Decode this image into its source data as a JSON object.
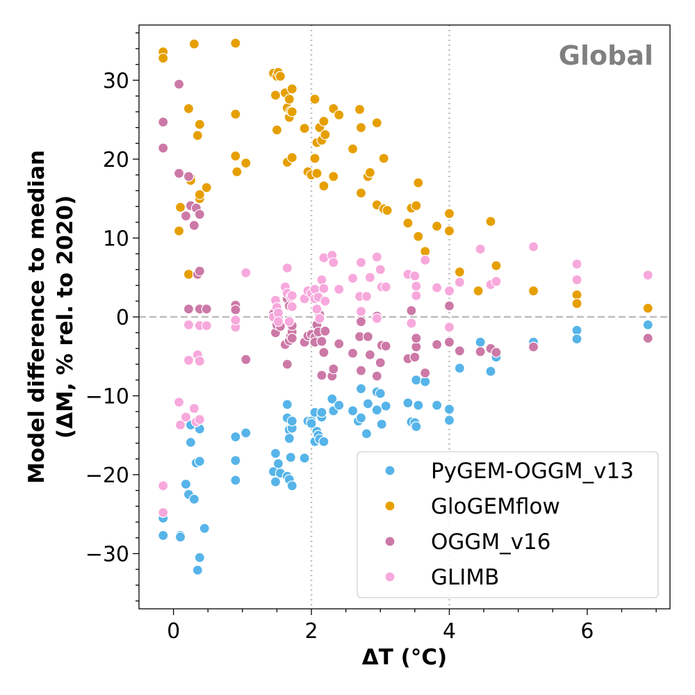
{
  "chart_data": {
    "type": "scatter",
    "title": "",
    "annotation": "Global",
    "xlabel": "ΔT (°C)",
    "ylabel_line1": "Model difference to median",
    "ylabel_line2": "(ΔM, % rel. to 2020)",
    "xlim": [
      -0.5,
      7.2
    ],
    "ylim": [
      -37,
      37
    ],
    "x_ticks": [
      0,
      2,
      4,
      6
    ],
    "y_ticks": [
      -30,
      -20,
      -10,
      0,
      10,
      20,
      30
    ],
    "x_tick_labels": [
      "0",
      "2",
      "4",
      "6"
    ],
    "y_tick_labels": [
      "−30",
      "−20",
      "−10",
      "0",
      "10",
      "20",
      "30"
    ],
    "reference_lines": {
      "vertical": [
        2,
        4
      ],
      "horizontal": [
        0
      ]
    },
    "legend_position": "bottom-right",
    "series": [
      {
        "name": "PyGEM-OGGM_v13",
        "color": "#56b4e9",
        "points": [
          [
            -0.15,
            -25.5
          ],
          [
            -0.15,
            -27.7
          ],
          [
            0.1,
            -27.7
          ],
          [
            0.1,
            -27.9
          ],
          [
            0.18,
            -21.2
          ],
          [
            0.22,
            -22.5
          ],
          [
            0.25,
            -13.7
          ],
          [
            0.25,
            -15.9
          ],
          [
            0.3,
            -23.1
          ],
          [
            0.33,
            -18.5
          ],
          [
            0.35,
            -32.1
          ],
          [
            0.38,
            -30.5
          ],
          [
            0.38,
            -18.3
          ],
          [
            0.38,
            -14.2
          ],
          [
            0.45,
            -26.8
          ],
          [
            0.9,
            -15.3
          ],
          [
            0.9,
            -18.2
          ],
          [
            0.9,
            -20.7
          ],
          [
            0.9,
            -15.2
          ],
          [
            1.05,
            -14.7
          ],
          [
            1.45,
            -19.6
          ],
          [
            1.48,
            -17.3
          ],
          [
            1.48,
            -20.9
          ],
          [
            1.52,
            -18.6
          ],
          [
            1.55,
            -19.8
          ],
          [
            1.65,
            -12.8
          ],
          [
            1.65,
            -11.1
          ],
          [
            1.65,
            -20.2
          ],
          [
            1.68,
            -20.6
          ],
          [
            1.68,
            -14.3
          ],
          [
            1.68,
            -15.4
          ],
          [
            1.7,
            -17.8
          ],
          [
            1.72,
            -14.1
          ],
          [
            1.72,
            -13.2
          ],
          [
            1.72,
            -21.4
          ],
          [
            1.9,
            -17.9
          ],
          [
            1.95,
            -13.2
          ],
          [
            2.0,
            -13.2
          ],
          [
            2.0,
            -13.5
          ],
          [
            2.05,
            -15.8
          ],
          [
            2.05,
            -12.1
          ],
          [
            2.08,
            -14.5
          ],
          [
            2.1,
            -15.0
          ],
          [
            2.12,
            -15.5
          ],
          [
            2.15,
            -12.7
          ],
          [
            2.15,
            -12.1
          ],
          [
            2.18,
            -15.8
          ],
          [
            2.3,
            -10.4
          ],
          [
            2.32,
            -11.9
          ],
          [
            2.4,
            -11.2
          ],
          [
            2.6,
            -11.9
          ],
          [
            2.68,
            -13.2
          ],
          [
            2.72,
            -12.8
          ],
          [
            2.72,
            -9.1
          ],
          [
            2.8,
            -14.8
          ],
          [
            2.82,
            -11.0
          ],
          [
            2.95,
            -9.5
          ],
          [
            2.95,
            -11.8
          ],
          [
            3.0,
            -9.7
          ],
          [
            3.02,
            -13.6
          ],
          [
            3.08,
            -11.3
          ],
          [
            3.4,
            -10.9
          ],
          [
            3.45,
            -13.3
          ],
          [
            3.5,
            -13.4
          ],
          [
            3.52,
            -13.9
          ],
          [
            3.52,
            -8.0
          ],
          [
            3.55,
            -11.2
          ],
          [
            3.65,
            -8.2
          ],
          [
            3.82,
            -11.2
          ],
          [
            4.0,
            -11.7
          ],
          [
            4.0,
            -13.1
          ],
          [
            4.15,
            -6.5
          ],
          [
            4.45,
            -3.2
          ],
          [
            4.6,
            -6.9
          ],
          [
            4.68,
            -5.1
          ],
          [
            5.22,
            -3.2
          ],
          [
            5.85,
            -1.7
          ],
          [
            5.85,
            -2.8
          ],
          [
            6.88,
            -1.0
          ]
        ]
      },
      {
        "name": "GloGEMflow",
        "color": "#e69f00",
        "points": [
          [
            -0.15,
            33.6
          ],
          [
            -0.15,
            32.8
          ],
          [
            0.08,
            10.9
          ],
          [
            0.1,
            13.9
          ],
          [
            0.22,
            26.4
          ],
          [
            0.22,
            5.4
          ],
          [
            0.25,
            17.6
          ],
          [
            0.25,
            17.3
          ],
          [
            0.3,
            34.6
          ],
          [
            0.35,
            23.0
          ],
          [
            0.38,
            15.0
          ],
          [
            0.38,
            24.4
          ],
          [
            0.38,
            15.5
          ],
          [
            0.48,
            16.4
          ],
          [
            0.9,
            34.7
          ],
          [
            0.9,
            20.4
          ],
          [
            0.9,
            25.7
          ],
          [
            0.92,
            18.4
          ],
          [
            1.05,
            19.5
          ],
          [
            1.45,
            30.9
          ],
          [
            1.48,
            28.1
          ],
          [
            1.5,
            30.5
          ],
          [
            1.5,
            23.7
          ],
          [
            1.52,
            31.0
          ],
          [
            1.55,
            30.5
          ],
          [
            1.62,
            28.4
          ],
          [
            1.65,
            26.5
          ],
          [
            1.65,
            19.6
          ],
          [
            1.68,
            25.3
          ],
          [
            1.68,
            27.6
          ],
          [
            1.7,
            26.1
          ],
          [
            1.72,
            26.0
          ],
          [
            1.72,
            28.9
          ],
          [
            1.72,
            20.2
          ],
          [
            1.9,
            23.9
          ],
          [
            1.95,
            18.4
          ],
          [
            2.0,
            18.0
          ],
          [
            2.05,
            27.6
          ],
          [
            2.05,
            20.1
          ],
          [
            2.08,
            22.1
          ],
          [
            2.08,
            18.2
          ],
          [
            2.12,
            24.0
          ],
          [
            2.15,
            22.4
          ],
          [
            2.18,
            16.6
          ],
          [
            2.18,
            24.8
          ],
          [
            2.2,
            23.1
          ],
          [
            2.32,
            26.4
          ],
          [
            2.32,
            17.8
          ],
          [
            2.4,
            25.6
          ],
          [
            2.6,
            21.3
          ],
          [
            2.7,
            26.3
          ],
          [
            2.72,
            24.0
          ],
          [
            2.72,
            15.7
          ],
          [
            2.82,
            17.8
          ],
          [
            2.85,
            18.3
          ],
          [
            2.95,
            24.6
          ],
          [
            2.95,
            14.2
          ],
          [
            3.05,
            20.1
          ],
          [
            3.05,
            13.7
          ],
          [
            3.1,
            13.5
          ],
          [
            3.4,
            11.9
          ],
          [
            3.45,
            13.8
          ],
          [
            3.52,
            14.1
          ],
          [
            3.55,
            17.0
          ],
          [
            3.55,
            10.2
          ],
          [
            3.65,
            8.3
          ],
          [
            3.82,
            11.5
          ],
          [
            4.0,
            13.1
          ],
          [
            4.0,
            10.9
          ],
          [
            4.15,
            5.7
          ],
          [
            4.42,
            3.3
          ],
          [
            4.6,
            12.1
          ],
          [
            4.68,
            6.5
          ],
          [
            5.22,
            3.3
          ],
          [
            5.85,
            2.8
          ],
          [
            5.85,
            1.7
          ],
          [
            6.88,
            1.1
          ]
        ]
      },
      {
        "name": "OGGM_v16",
        "color": "#cc79a7",
        "points": [
          [
            -0.15,
            24.7
          ],
          [
            -0.15,
            21.4
          ],
          [
            0.08,
            29.5
          ],
          [
            0.08,
            18.2
          ],
          [
            0.18,
            12.8
          ],
          [
            0.22,
            17.8
          ],
          [
            0.25,
            14.1
          ],
          [
            0.3,
            11.6
          ],
          [
            0.33,
            13.8
          ],
          [
            0.35,
            5.4
          ],
          [
            0.38,
            5.8
          ],
          [
            0.38,
            13.0
          ],
          [
            0.38,
            1.0
          ],
          [
            0.48,
            1.0
          ],
          [
            0.22,
            1.0
          ],
          [
            0.9,
            1.5
          ],
          [
            0.9,
            0.9
          ],
          [
            0.9,
            -0.3
          ],
          [
            0.9,
            -0.6
          ],
          [
            1.05,
            -5.4
          ],
          [
            1.45,
            0.4
          ],
          [
            1.48,
            -2.0
          ],
          [
            1.5,
            -1.0
          ],
          [
            1.52,
            0.2
          ],
          [
            1.52,
            0.0
          ],
          [
            1.55,
            -1.2
          ],
          [
            1.62,
            -3.5
          ],
          [
            1.65,
            -6.0
          ],
          [
            1.65,
            2.3
          ],
          [
            1.68,
            -3.0
          ],
          [
            1.68,
            1.4
          ],
          [
            1.7,
            -2.4
          ],
          [
            1.72,
            -1.9
          ],
          [
            1.72,
            -1.1
          ],
          [
            1.72,
            -2.7
          ],
          [
            1.9,
            -3.2
          ],
          [
            1.95,
            -2.4
          ],
          [
            2.0,
            -2.2
          ],
          [
            2.05,
            -2.6
          ],
          [
            2.05,
            -3.2
          ],
          [
            2.08,
            -1.0
          ],
          [
            2.1,
            -1.9
          ],
          [
            2.12,
            0.3
          ],
          [
            2.15,
            -7.4
          ],
          [
            2.15,
            -3.1
          ],
          [
            2.18,
            -4.5
          ],
          [
            2.2,
            -1.8
          ],
          [
            2.3,
            -7.5
          ],
          [
            2.32,
            -6.6
          ],
          [
            2.4,
            -3.4
          ],
          [
            2.6,
            -4.6
          ],
          [
            2.7,
            -2.5
          ],
          [
            2.72,
            -0.6
          ],
          [
            2.72,
            -6.8
          ],
          [
            2.82,
            -2.5
          ],
          [
            2.85,
            -4.8
          ],
          [
            2.95,
            0.1
          ],
          [
            2.95,
            -7.5
          ],
          [
            3.0,
            -5.8
          ],
          [
            3.02,
            -3.6
          ],
          [
            3.08,
            -3.7
          ],
          [
            3.4,
            -5.3
          ],
          [
            3.45,
            0.8
          ],
          [
            3.5,
            -5.1
          ],
          [
            3.52,
            -3.8
          ],
          [
            3.52,
            -2.7
          ],
          [
            3.65,
            -7.1
          ],
          [
            3.82,
            -3.5
          ],
          [
            4.0,
            1.4
          ],
          [
            4.0,
            -3.2
          ],
          [
            4.15,
            -4.3
          ],
          [
            4.45,
            -4.4
          ],
          [
            4.6,
            -4.0
          ],
          [
            4.68,
            -4.5
          ],
          [
            5.22,
            -3.8
          ],
          [
            6.88,
            -2.7
          ]
        ]
      },
      {
        "name": "GLIMB",
        "color": "#f7a8dc",
        "points": [
          [
            -0.15,
            -21.4
          ],
          [
            -0.15,
            -24.8
          ],
          [
            0.08,
            -10.8
          ],
          [
            0.1,
            -13.7
          ],
          [
            0.18,
            -12.7
          ],
          [
            0.22,
            -5.5
          ],
          [
            0.22,
            -1.0
          ],
          [
            0.3,
            -11.6
          ],
          [
            0.33,
            -13.3
          ],
          [
            0.35,
            -4.8
          ],
          [
            0.38,
            -13.0
          ],
          [
            0.38,
            -1.1
          ],
          [
            0.38,
            -5.6
          ],
          [
            0.48,
            -1.1
          ],
          [
            0.9,
            -1.3
          ],
          [
            0.9,
            -0.4
          ],
          [
            1.05,
            5.6
          ],
          [
            1.45,
            0.0
          ],
          [
            1.48,
            2.1
          ],
          [
            1.5,
            1.2
          ],
          [
            1.52,
            0.5
          ],
          [
            1.52,
            -0.6
          ],
          [
            1.62,
            3.8
          ],
          [
            1.65,
            6.2
          ],
          [
            1.65,
            3.0
          ],
          [
            1.68,
            -0.6
          ],
          [
            1.7,
            2.5
          ],
          [
            1.72,
            1.3
          ],
          [
            1.72,
            2.7
          ],
          [
            1.9,
            2.3
          ],
          [
            1.95,
            3.3
          ],
          [
            2.0,
            3.0
          ],
          [
            2.05,
            3.5
          ],
          [
            2.05,
            2.3
          ],
          [
            2.08,
            1.0
          ],
          [
            2.1,
            2.5
          ],
          [
            2.12,
            -0.2
          ],
          [
            2.15,
            4.7
          ],
          [
            2.18,
            3.6
          ],
          [
            2.18,
            7.5
          ],
          [
            2.2,
            2.0
          ],
          [
            2.3,
            7.8
          ],
          [
            2.32,
            6.9
          ],
          [
            2.4,
            3.5
          ],
          [
            2.6,
            4.9
          ],
          [
            2.7,
            2.6
          ],
          [
            2.72,
            0.7
          ],
          [
            2.72,
            6.9
          ],
          [
            2.8,
            2.6
          ],
          [
            2.85,
            5.0
          ],
          [
            2.95,
            7.6
          ],
          [
            2.95,
            -0.2
          ],
          [
            3.0,
            6.0
          ],
          [
            3.02,
            3.8
          ],
          [
            3.08,
            3.8
          ],
          [
            3.4,
            5.4
          ],
          [
            3.45,
            -0.8
          ],
          [
            3.5,
            5.2
          ],
          [
            3.52,
            3.9
          ],
          [
            3.52,
            2.7
          ],
          [
            3.65,
            7.2
          ],
          [
            3.82,
            3.7
          ],
          [
            4.0,
            -1.3
          ],
          [
            4.0,
            3.3
          ],
          [
            4.15,
            4.4
          ],
          [
            4.45,
            8.6
          ],
          [
            4.6,
            4.1
          ],
          [
            4.68,
            4.5
          ],
          [
            5.22,
            8.9
          ],
          [
            5.85,
            6.7
          ],
          [
            5.85,
            4.7
          ],
          [
            6.88,
            5.3
          ]
        ]
      }
    ]
  }
}
